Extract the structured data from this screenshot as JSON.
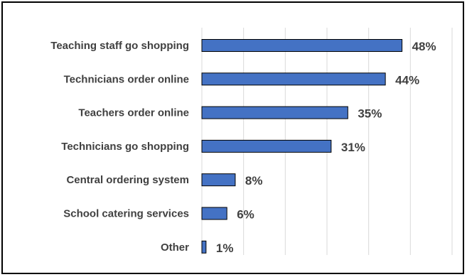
{
  "chart_data": {
    "type": "bar",
    "orientation": "horizontal",
    "categories": [
      "Teaching staff go shopping",
      "Technicians order online",
      "Teachers order online",
      "Technicians go shopping",
      "Central ordering system",
      "School catering services",
      "Other"
    ],
    "values": [
      48,
      44,
      35,
      31,
      8,
      6,
      1
    ],
    "data_labels": [
      "48%",
      "44%",
      "35%",
      "31%",
      "8%",
      "6%",
      "1%"
    ],
    "unit": "%",
    "xlim": [
      0,
      60
    ],
    "grid": true,
    "legend": "none",
    "bar_color": "#4472C4",
    "bar_edge_color": "#000000"
  }
}
